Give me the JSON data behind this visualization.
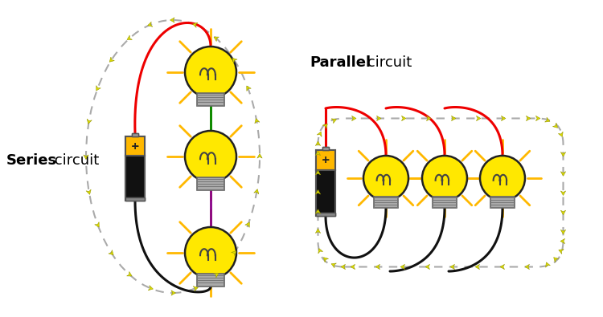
{
  "bg_color": "#ffffff",
  "series_label_bold": "Series",
  "series_label_normal": " circuit",
  "parallel_label_bold": "Parallel",
  "parallel_label_normal": " circuit",
  "wire_red": "#ee0000",
  "wire_black": "#111111",
  "wire_green": "#008800",
  "wire_purple": "#880088",
  "bulb_yellow": "#FFE800",
  "bulb_outline": "#222222",
  "battery_gold": "#FFB800",
  "battery_black": "#111111",
  "battery_outline": "#555555",
  "arrow_yellow": "#DDDD00",
  "arrow_outline": "#888800",
  "dashed_color": "#aaaaaa",
  "filament_color": "#444444",
  "base_color": "#aaaaaa",
  "base_outline": "#666666",
  "ray_color": "#FFB800"
}
